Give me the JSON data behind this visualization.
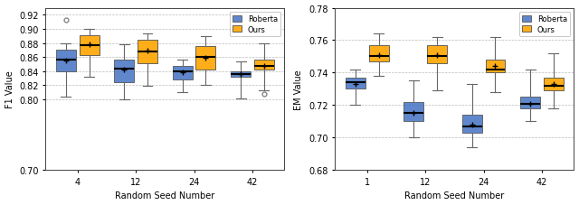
{
  "left": {
    "ylabel": "F1 Value",
    "xlabel": "Random Seed Number",
    "ylim": [
      0.7,
      0.93
    ],
    "yticks": [
      0.7,
      0.8,
      0.82,
      0.84,
      0.86,
      0.88,
      0.9,
      0.92
    ],
    "xtick_labels": [
      "4",
      "12",
      "24",
      "42"
    ],
    "baseline_color": "#4472C4",
    "ours_color": "#FFA500",
    "positions": [
      1,
      2,
      3,
      4
    ],
    "baseline": {
      "medians": [
        0.857,
        0.844,
        0.84,
        0.836
      ],
      "means": [
        0.855,
        0.843,
        0.839,
        0.836
      ],
      "q1": [
        0.84,
        0.824,
        0.828,
        0.832
      ],
      "q3": [
        0.87,
        0.856,
        0.848,
        0.84
      ],
      "whislo": [
        0.804,
        0.8,
        0.81,
        0.802
      ],
      "whishi": [
        0.88,
        0.878,
        0.856,
        0.854
      ],
      "b_fliers": [
        [
          0.913
        ],
        [],
        [],
        []
      ],
      "o_fliers": [
        [],
        [],
        [],
        [
          0.808
        ]
      ]
    },
    "ours": {
      "medians": [
        0.877,
        0.868,
        0.86,
        0.847
      ],
      "means": [
        0.878,
        0.869,
        0.859,
        0.848
      ],
      "q1": [
        0.863,
        0.851,
        0.843,
        0.842
      ],
      "q3": [
        0.891,
        0.885,
        0.876,
        0.857
      ],
      "whislo": [
        0.832,
        0.819,
        0.82,
        0.813
      ],
      "whishi": [
        0.9,
        0.894,
        0.89,
        0.879
      ]
    }
  },
  "right": {
    "ylabel": "EM Value",
    "xlabel": "Random Seed Number",
    "ylim": [
      0.68,
      0.78
    ],
    "yticks": [
      0.68,
      0.7,
      0.72,
      0.74,
      0.76,
      0.78
    ],
    "xtick_labels": [
      "1",
      "12",
      "24",
      "42"
    ],
    "baseline_color": "#4472C4",
    "ours_color": "#FFA500",
    "positions": [
      1,
      2,
      3,
      4
    ],
    "baseline": {
      "medians": [
        0.734,
        0.715,
        0.707,
        0.721
      ],
      "means": [
        0.733,
        0.715,
        0.708,
        0.721
      ],
      "q1": [
        0.73,
        0.71,
        0.703,
        0.718
      ],
      "q3": [
        0.737,
        0.722,
        0.714,
        0.725
      ],
      "whislo": [
        0.72,
        0.7,
        0.694,
        0.71
      ],
      "whishi": [
        0.742,
        0.735,
        0.733,
        0.742
      ],
      "b_fliers": [
        [],
        [],
        [],
        []
      ],
      "o_fliers": [
        [],
        [],
        [],
        []
      ]
    },
    "ours": {
      "medians": [
        0.75,
        0.75,
        0.742,
        0.732
      ],
      "means": [
        0.751,
        0.751,
        0.744,
        0.733
      ],
      "q1": [
        0.747,
        0.746,
        0.74,
        0.729
      ],
      "q3": [
        0.757,
        0.757,
        0.748,
        0.737
      ],
      "whislo": [
        0.738,
        0.729,
        0.728,
        0.718
      ],
      "whishi": [
        0.764,
        0.762,
        0.762,
        0.752
      ]
    }
  },
  "legend": {
    "baseline_label": "Roberta",
    "ours_label": "Ours"
  },
  "figsize": [
    6.4,
    2.28
  ],
  "dpi": 100
}
